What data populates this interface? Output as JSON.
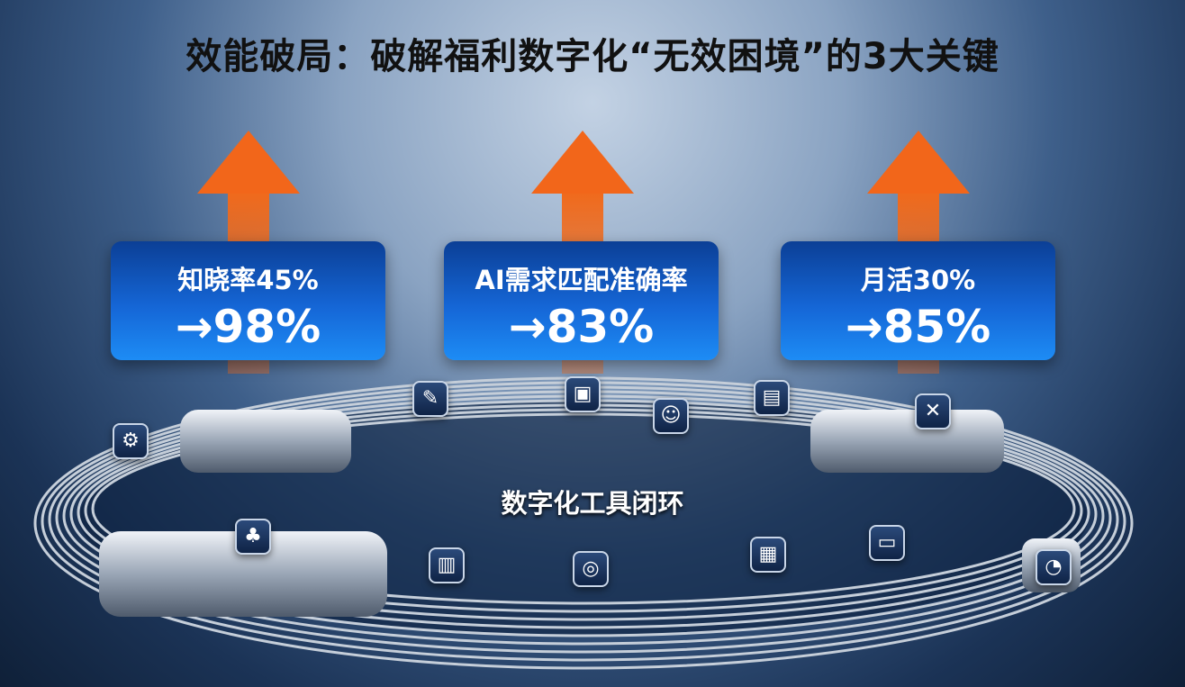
{
  "title": "效能破局：破解福利数字化“无效困境”的3大关键",
  "colors": {
    "arrow": "#f2661a",
    "card": "#1566d6"
  },
  "cards": [
    {
      "label": "知晓率45%",
      "value": "→98%"
    },
    {
      "label": "AI需求匹配准确率",
      "value": "→83%"
    },
    {
      "label": "月活30%",
      "value": "→85%"
    }
  ],
  "center_label": "数字化工具闭环",
  "icons": [
    {
      "name": "person-settings-icon",
      "glyph": "⚙"
    },
    {
      "name": "tools-icon",
      "glyph": "✎"
    },
    {
      "name": "gift-box-icon",
      "glyph": "▣"
    },
    {
      "name": "robot-icon",
      "glyph": "☺"
    },
    {
      "name": "monitor-icon",
      "glyph": "▤"
    },
    {
      "name": "wrench-cross-icon",
      "glyph": "✕"
    },
    {
      "name": "plant-box-icon",
      "glyph": "♣"
    },
    {
      "name": "document-icon",
      "glyph": "▥"
    },
    {
      "name": "search-tool-icon",
      "glyph": "◎"
    },
    {
      "name": "calendar-icon",
      "glyph": "▦"
    },
    {
      "name": "chart-monitor-icon",
      "glyph": "▭"
    },
    {
      "name": "gauge-icon",
      "glyph": "◔"
    }
  ]
}
